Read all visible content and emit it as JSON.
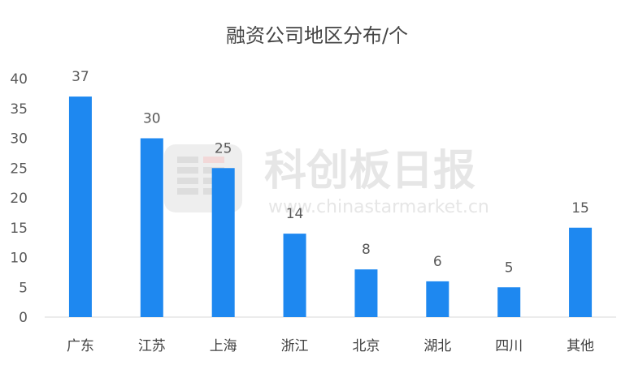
{
  "chart_data": {
    "type": "bar",
    "title": "融资公司地区分布/个",
    "categories": [
      "广东",
      "江苏",
      "上海",
      "浙江",
      "北京",
      "湖北",
      "四川",
      "其他"
    ],
    "values": [
      37,
      30,
      25,
      14,
      8,
      6,
      5,
      15
    ],
    "data_labels": [
      "37",
      "30",
      "25",
      "14",
      "8",
      "6",
      "5",
      "15"
    ],
    "yticks": [
      "0",
      "5",
      "10",
      "15",
      "20",
      "25",
      "30",
      "35",
      "40"
    ],
    "ylim": [
      0,
      40
    ],
    "grid": false,
    "bar_color": "#1e88f0"
  },
  "watermark": {
    "text": "科创板日报",
    "url": "www.chinastarmarket.cn"
  }
}
